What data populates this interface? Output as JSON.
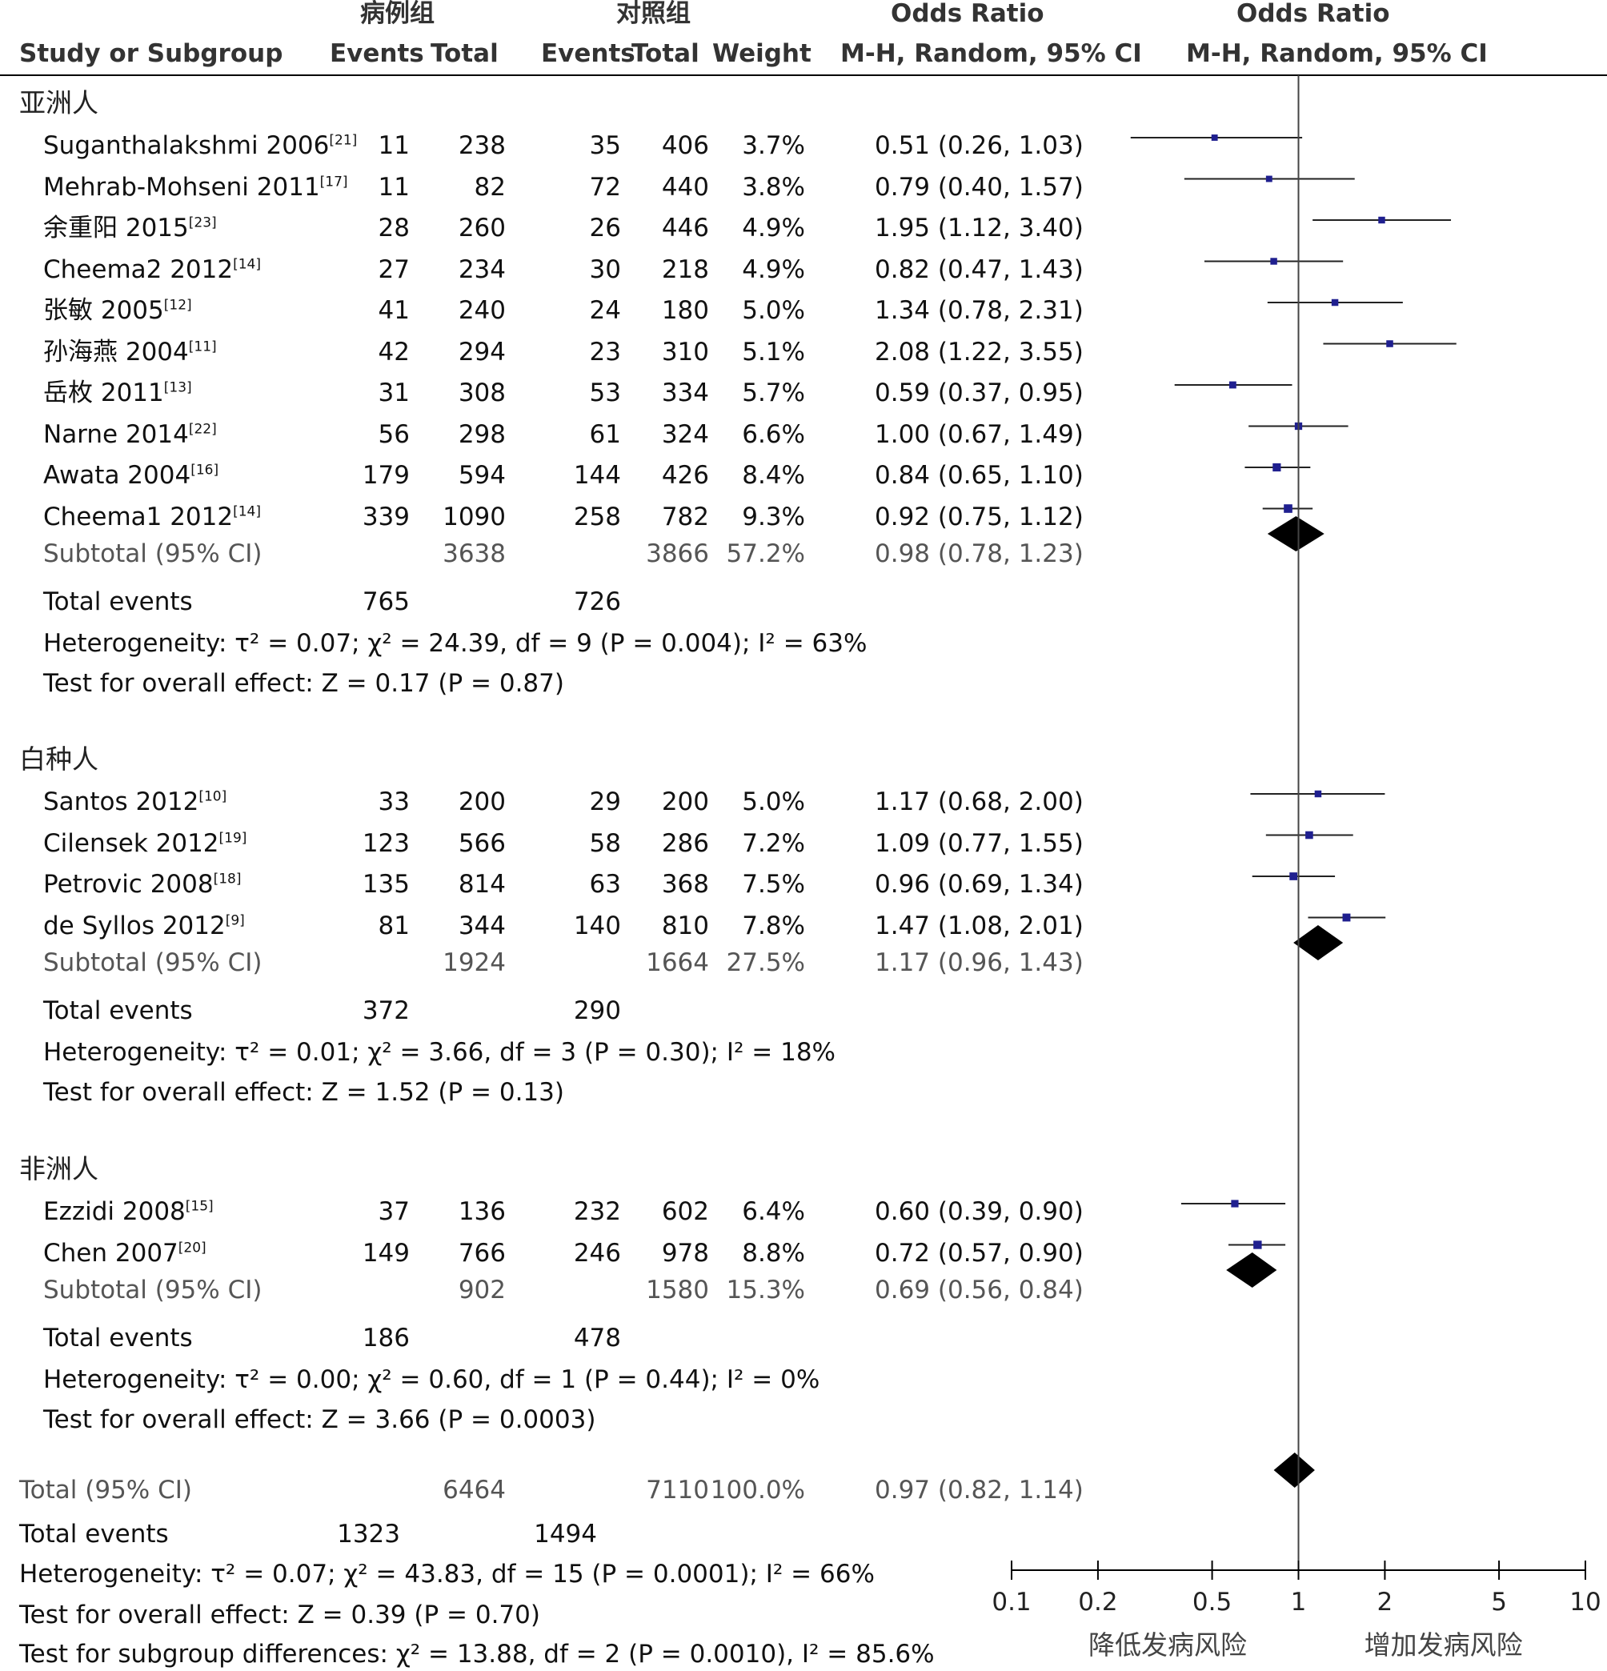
{
  "chart_data": {
    "type": "forest",
    "header": {
      "group1": "病例组",
      "group2": "对照组",
      "or_left": "Odds Ratio",
      "or_right": "Odds Ratio",
      "study": "Study or Subgroup",
      "events1": "Events",
      "total1": "Total",
      "events2": "Events",
      "total2": "Total",
      "weight": "Weight",
      "method_left": "M-H, Random, 95% CI",
      "method_right": "M-H, Random, 95% CI"
    },
    "x_axis": {
      "scale": "log",
      "range": [
        0.1,
        10
      ],
      "ticks": [
        0.1,
        0.2,
        0.5,
        1,
        2,
        5,
        10
      ],
      "tick_labels": [
        "0.1",
        "0.2",
        "0.5",
        "1",
        "2",
        "5",
        "10"
      ],
      "left_label": "降低发病风险",
      "right_label": "增加发病风险"
    },
    "groups": [
      {
        "name": "亚洲人",
        "studies": [
          {
            "label": "Suganthalakshmi 2006",
            "ref": "[21]",
            "e1": "11",
            "t1": "238",
            "e2": "35",
            "t2": "406",
            "w": "3.7%",
            "ci": "0.51 (0.26, 1.03)",
            "or": 0.51,
            "lo": 0.26,
            "hi": 1.03
          },
          {
            "label": "Mehrab-Mohseni 2011",
            "ref": "[17]",
            "e1": "11",
            "t1": "82",
            "e2": "72",
            "t2": "440",
            "w": "3.8%",
            "ci": "0.79 (0.40, 1.57)",
            "or": 0.79,
            "lo": 0.4,
            "hi": 1.57
          },
          {
            "label": "余重阳 2015",
            "ref": "[23]",
            "e1": "28",
            "t1": "260",
            "e2": "26",
            "t2": "446",
            "w": "4.9%",
            "ci": "1.95 (1.12, 3.40)",
            "or": 1.95,
            "lo": 1.12,
            "hi": 3.4
          },
          {
            "label": "Cheema2 2012",
            "ref": "[14]",
            "e1": "27",
            "t1": "234",
            "e2": "30",
            "t2": "218",
            "w": "4.9%",
            "ci": "0.82 (0.47, 1.43)",
            "or": 0.82,
            "lo": 0.47,
            "hi": 1.43
          },
          {
            "label": "张敏 2005",
            "ref": "[12]",
            "e1": "41",
            "t1": "240",
            "e2": "24",
            "t2": "180",
            "w": "5.0%",
            "ci": "1.34 (0.78, 2.31)",
            "or": 1.34,
            "lo": 0.78,
            "hi": 2.31
          },
          {
            "label": "孙海燕 2004",
            "ref": "[11]",
            "e1": "42",
            "t1": "294",
            "e2": "23",
            "t2": "310",
            "w": "5.1%",
            "ci": "2.08 (1.22, 3.55)",
            "or": 2.08,
            "lo": 1.22,
            "hi": 3.55
          },
          {
            "label": "岳枚 2011",
            "ref": "[13]",
            "e1": "31",
            "t1": "308",
            "e2": "53",
            "t2": "334",
            "w": "5.7%",
            "ci": "0.59 (0.37, 0.95)",
            "or": 0.59,
            "lo": 0.37,
            "hi": 0.95
          },
          {
            "label": "Narne 2014",
            "ref": "[22]",
            "e1": "56",
            "t1": "298",
            "e2": "61",
            "t2": "324",
            "w": "6.6%",
            "ci": "1.00 (0.67, 1.49)",
            "or": 1.0,
            "lo": 0.67,
            "hi": 1.49
          },
          {
            "label": "Awata 2004",
            "ref": "[16]",
            "e1": "179",
            "t1": "594",
            "e2": "144",
            "t2": "426",
            "w": "8.4%",
            "ci": "0.84 (0.65, 1.10)",
            "or": 0.84,
            "lo": 0.65,
            "hi": 1.1
          },
          {
            "label": "Cheema1 2012",
            "ref": "[14]",
            "e1": "339",
            "t1": "1090",
            "e2": "258",
            "t2": "782",
            "w": "9.3%",
            "ci": "0.92 (0.75, 1.12)",
            "or": 0.92,
            "lo": 0.75,
            "hi": 1.12
          }
        ],
        "subtotal": {
          "label": "Subtotal (95% CI)",
          "t1": "3638",
          "t2": "3866",
          "w": "57.2%",
          "ci": "0.98 (0.78, 1.23)",
          "or": 0.98,
          "lo": 0.78,
          "hi": 1.23
        },
        "total_events": {
          "label": "Total events",
          "e1": "765",
          "e2": "726"
        },
        "heterogeneity": "Heterogeneity: τ² = 0.07; χ² = 24.39, df = 9 (P = 0.004); I² = 63%",
        "overall": "Test for overall effect: Z = 0.17 (P = 0.87)"
      },
      {
        "name": "白种人",
        "studies": [
          {
            "label": "Santos 2012",
            "ref": "[10]",
            "e1": "33",
            "t1": "200",
            "e2": "29",
            "t2": "200",
            "w": "5.0%",
            "ci": "1.17 (0.68, 2.00)",
            "or": 1.17,
            "lo": 0.68,
            "hi": 2.0
          },
          {
            "label": "Cilensek 2012",
            "ref": "[19]",
            "e1": "123",
            "t1": "566",
            "e2": "58",
            "t2": "286",
            "w": "7.2%",
            "ci": "1.09 (0.77, 1.55)",
            "or": 1.09,
            "lo": 0.77,
            "hi": 1.55
          },
          {
            "label": "Petrovic 2008",
            "ref": "[18]",
            "e1": "135",
            "t1": "814",
            "e2": "63",
            "t2": "368",
            "w": "7.5%",
            "ci": "0.96 (0.69, 1.34)",
            "or": 0.96,
            "lo": 0.69,
            "hi": 1.34
          },
          {
            "label": "de Syllos 2012",
            "ref": "[9]",
            "e1": "81",
            "t1": "344",
            "e2": "140",
            "t2": "810",
            "w": "7.8%",
            "ci": "1.47 (1.08, 2.01)",
            "or": 1.47,
            "lo": 1.08,
            "hi": 2.01
          }
        ],
        "subtotal": {
          "label": "Subtotal (95% CI)",
          "t1": "1924",
          "t2": "1664",
          "w": "27.5%",
          "ci": "1.17 (0.96, 1.43)",
          "or": 1.17,
          "lo": 0.96,
          "hi": 1.43
        },
        "total_events": {
          "label": "Total events",
          "e1": "372",
          "e2": "290"
        },
        "heterogeneity": "Heterogeneity: τ² = 0.01; χ² = 3.66, df = 3 (P = 0.30); I² = 18%",
        "overall": "Test for overall effect: Z = 1.52 (P = 0.13)"
      },
      {
        "name": "非洲人",
        "studies": [
          {
            "label": "Ezzidi 2008",
            "ref": "[15]",
            "e1": "37",
            "t1": "136",
            "e2": "232",
            "t2": "602",
            "w": "6.4%",
            "ci": "0.60 (0.39, 0.90)",
            "or": 0.6,
            "lo": 0.39,
            "hi": 0.9
          },
          {
            "label": "Chen 2007",
            "ref": "[20]",
            "e1": "149",
            "t1": "766",
            "e2": "246",
            "t2": "978",
            "w": "8.8%",
            "ci": "0.72 (0.57, 0.90)",
            "or": 0.72,
            "lo": 0.57,
            "hi": 0.9
          }
        ],
        "subtotal": {
          "label": "Subtotal (95% CI)",
          "t1": "902",
          "t2": "1580",
          "w": "15.3%",
          "ci": "0.69 (0.56, 0.84)",
          "or": 0.69,
          "lo": 0.56,
          "hi": 0.84
        },
        "total_events": {
          "label": "Total events",
          "e1": "186",
          "e2": "478"
        },
        "heterogeneity": "Heterogeneity: τ² = 0.00; χ² = 0.60, df = 1 (P = 0.44); I² = 0%",
        "overall": "Test for overall effect: Z = 3.66 (P = 0.0003)"
      }
    ],
    "total": {
      "label": "Total (95% CI)",
      "t1": "6464",
      "t2": "7110",
      "w": "100.0%",
      "ci": "0.97 (0.82, 1.14)",
      "or": 0.97,
      "lo": 0.82,
      "hi": 1.14
    },
    "total_events": {
      "label": "Total events",
      "e1": "1323",
      "e2": "1494"
    },
    "heterogeneity": "Heterogeneity: τ² = 0.07; χ² = 43.83, df = 15 (P = 0.0001); I² = 66%",
    "overall": "Test for overall effect: Z = 0.39 (P = 0.70)",
    "subgroup_diff": "Test for subgroup differences: χ² = 13.88, df = 2 (P = 0.0010), I² = 85.6%",
    "colors": {
      "square": "#1f1f8f",
      "diamond": "#000000",
      "line": "#222222"
    }
  }
}
